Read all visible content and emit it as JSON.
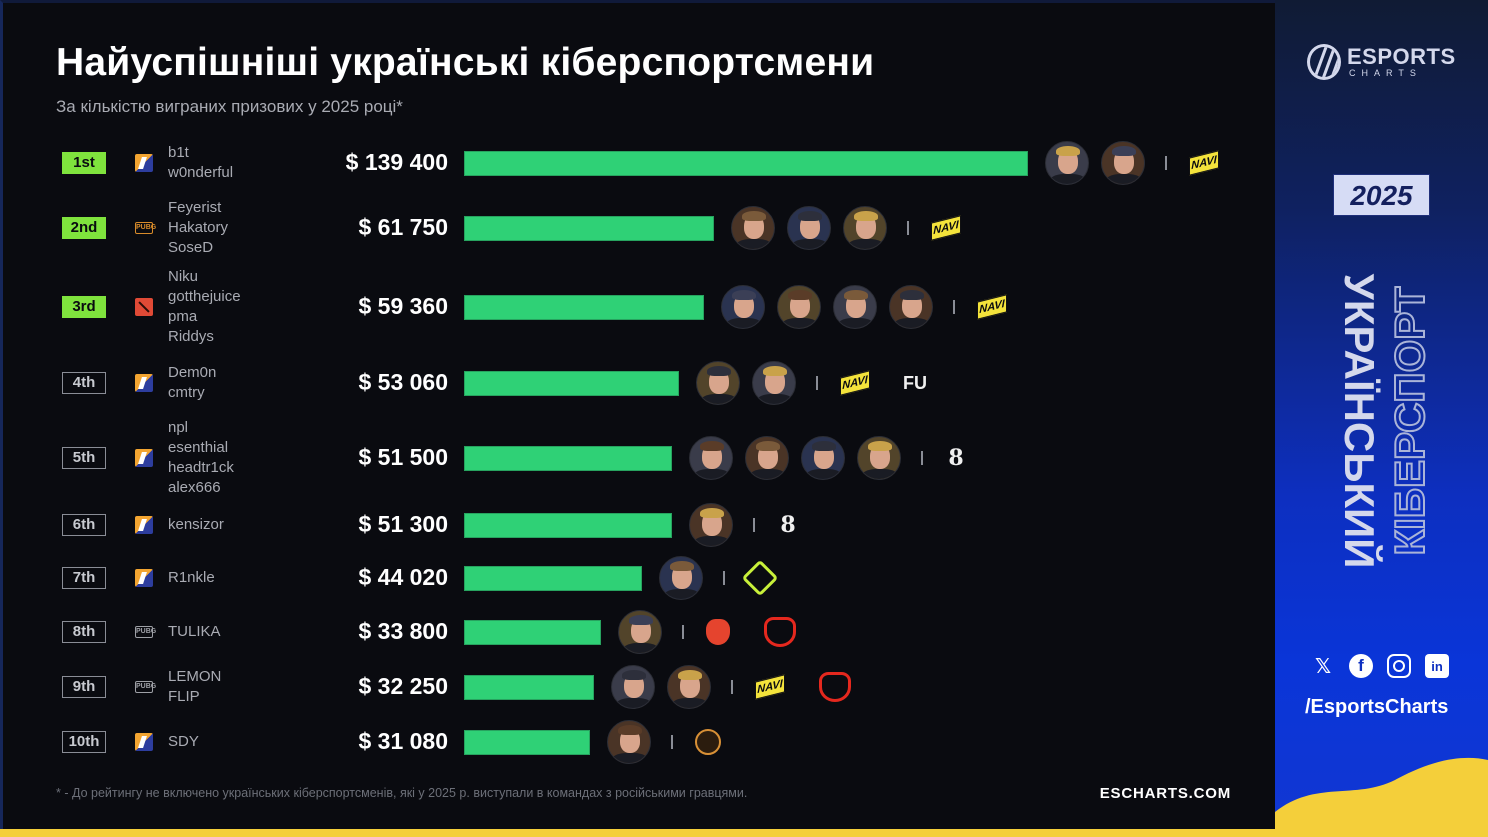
{
  "header": {
    "title": "Найуспішніші українські кіберспортсмени",
    "subtitle": "За кількістю виграних призових у 2025 році*"
  },
  "colors": {
    "background": "#0a0b10",
    "bar": "#2fd176",
    "top3_badge": "#7fe33d",
    "sidebar_blue": "#0d2fc0",
    "flag_yellow": "#f4cf3a",
    "navi_yellow": "#f4e33b"
  },
  "rows": [
    {
      "rank": "1st",
      "game": "cs2-icon",
      "players": [
        "b1t",
        "w0nderful"
      ],
      "amount": "$ 139 400",
      "avatars": 2,
      "teams": [
        "navi-logo"
      ]
    },
    {
      "rank": "2nd",
      "game": "pubg-icon",
      "players": [
        "Feyerist",
        "Hakatory",
        "SoseD"
      ],
      "amount": "$ 61 750",
      "avatars": 3,
      "teams": [
        "navi-logo"
      ]
    },
    {
      "rank": "3rd",
      "game": "dota2-icon",
      "players": [
        "Niku",
        "gotthejuice",
        "pma",
        "Riddys"
      ],
      "amount": "$ 59 360",
      "avatars": 4,
      "teams": [
        "navi-logo"
      ]
    },
    {
      "rank": "4th",
      "game": "cs2-icon",
      "players": [
        "Dem0n",
        "cmtry"
      ],
      "amount": "$ 53 060",
      "avatars": 2,
      "teams": [
        "navi-logo",
        "fut-logo"
      ]
    },
    {
      "rank": "5th",
      "game": "cs2-icon",
      "players": [
        "npl",
        "esenthial",
        "headtr1ck",
        "alex666"
      ],
      "amount": "$ 51 500",
      "avatars": 4,
      "teams": [
        "b8-logo"
      ]
    },
    {
      "rank": "6th",
      "game": "cs2-icon",
      "players": [
        "kensizor"
      ],
      "amount": "$ 51 300",
      "avatars": 1,
      "teams": [
        "b8-logo"
      ]
    },
    {
      "rank": "7th",
      "game": "cs2-icon",
      "players": [
        "R1nkle"
      ],
      "amount": "$ 44 020",
      "avatars": 1,
      "teams": [
        "nip-logo"
      ]
    },
    {
      "rank": "8th",
      "game": "pubg-mobile-icon",
      "players": [
        "TULIKA"
      ],
      "amount": "$ 33 800",
      "avatars": 1,
      "teams": [
        "boar-logo",
        "mouz-logo"
      ]
    },
    {
      "rank": "9th",
      "game": "pubg-mobile-icon",
      "players": [
        "LEMON",
        "FLIP"
      ],
      "amount": "$ 32 250",
      "avatars": 2,
      "teams": [
        "navi-logo",
        "mouz-logo"
      ]
    },
    {
      "rank": "10th",
      "game": "cs2-icon",
      "players": [
        "SDY"
      ],
      "amount": "$ 31 080",
      "avatars": 1,
      "teams": [
        "ence-logo"
      ]
    }
  ],
  "footer": {
    "footnote": "* - До рейтингу не включено українських кіберспортсменів, які у 2025 р. виступали в командах з російськими гравцями.",
    "site": "ESCHARTS.COM"
  },
  "sidebar": {
    "brand_top": "ESPORTS",
    "brand_bottom": "CHARTS",
    "year": "2025",
    "vertical_1": "УКРАЇНСЬКИЙ",
    "vertical_2": "КІБЕРСПОРТ",
    "socials": [
      "x-icon",
      "facebook-icon",
      "instagram-icon",
      "linkedin-icon"
    ],
    "handle": "/EsportsCharts"
  },
  "chart_data": {
    "type": "bar",
    "orientation": "horizontal",
    "title": "Найуспішніші українські кіберспортсмени",
    "subtitle": "За кількістю виграних призових у 2025 році*",
    "categories": [
      "b1t, w0nderful",
      "Feyerist, Hakatory, SoseD",
      "Niku, gotthejuice, pma, Riddys",
      "Dem0n, cmtry",
      "npl, esenthial, headtr1ck, alex666",
      "kensizor",
      "R1nkle",
      "TULIKA",
      "LEMON, FLIP",
      "SDY"
    ],
    "ranks": [
      "1st",
      "2nd",
      "3rd",
      "4th",
      "5th",
      "6th",
      "7th",
      "8th",
      "9th",
      "10th"
    ],
    "games": [
      "CS2",
      "PUBG",
      "Dota 2",
      "CS2",
      "CS2",
      "CS2",
      "CS2",
      "PUBG Mobile",
      "PUBG Mobile",
      "CS2"
    ],
    "values": [
      139400,
      61750,
      59360,
      53060,
      51500,
      51300,
      44020,
      33800,
      32250,
      31080
    ],
    "unit": "USD",
    "xlabel": "",
    "ylabel": "",
    "grid": false,
    "legend": "none"
  }
}
